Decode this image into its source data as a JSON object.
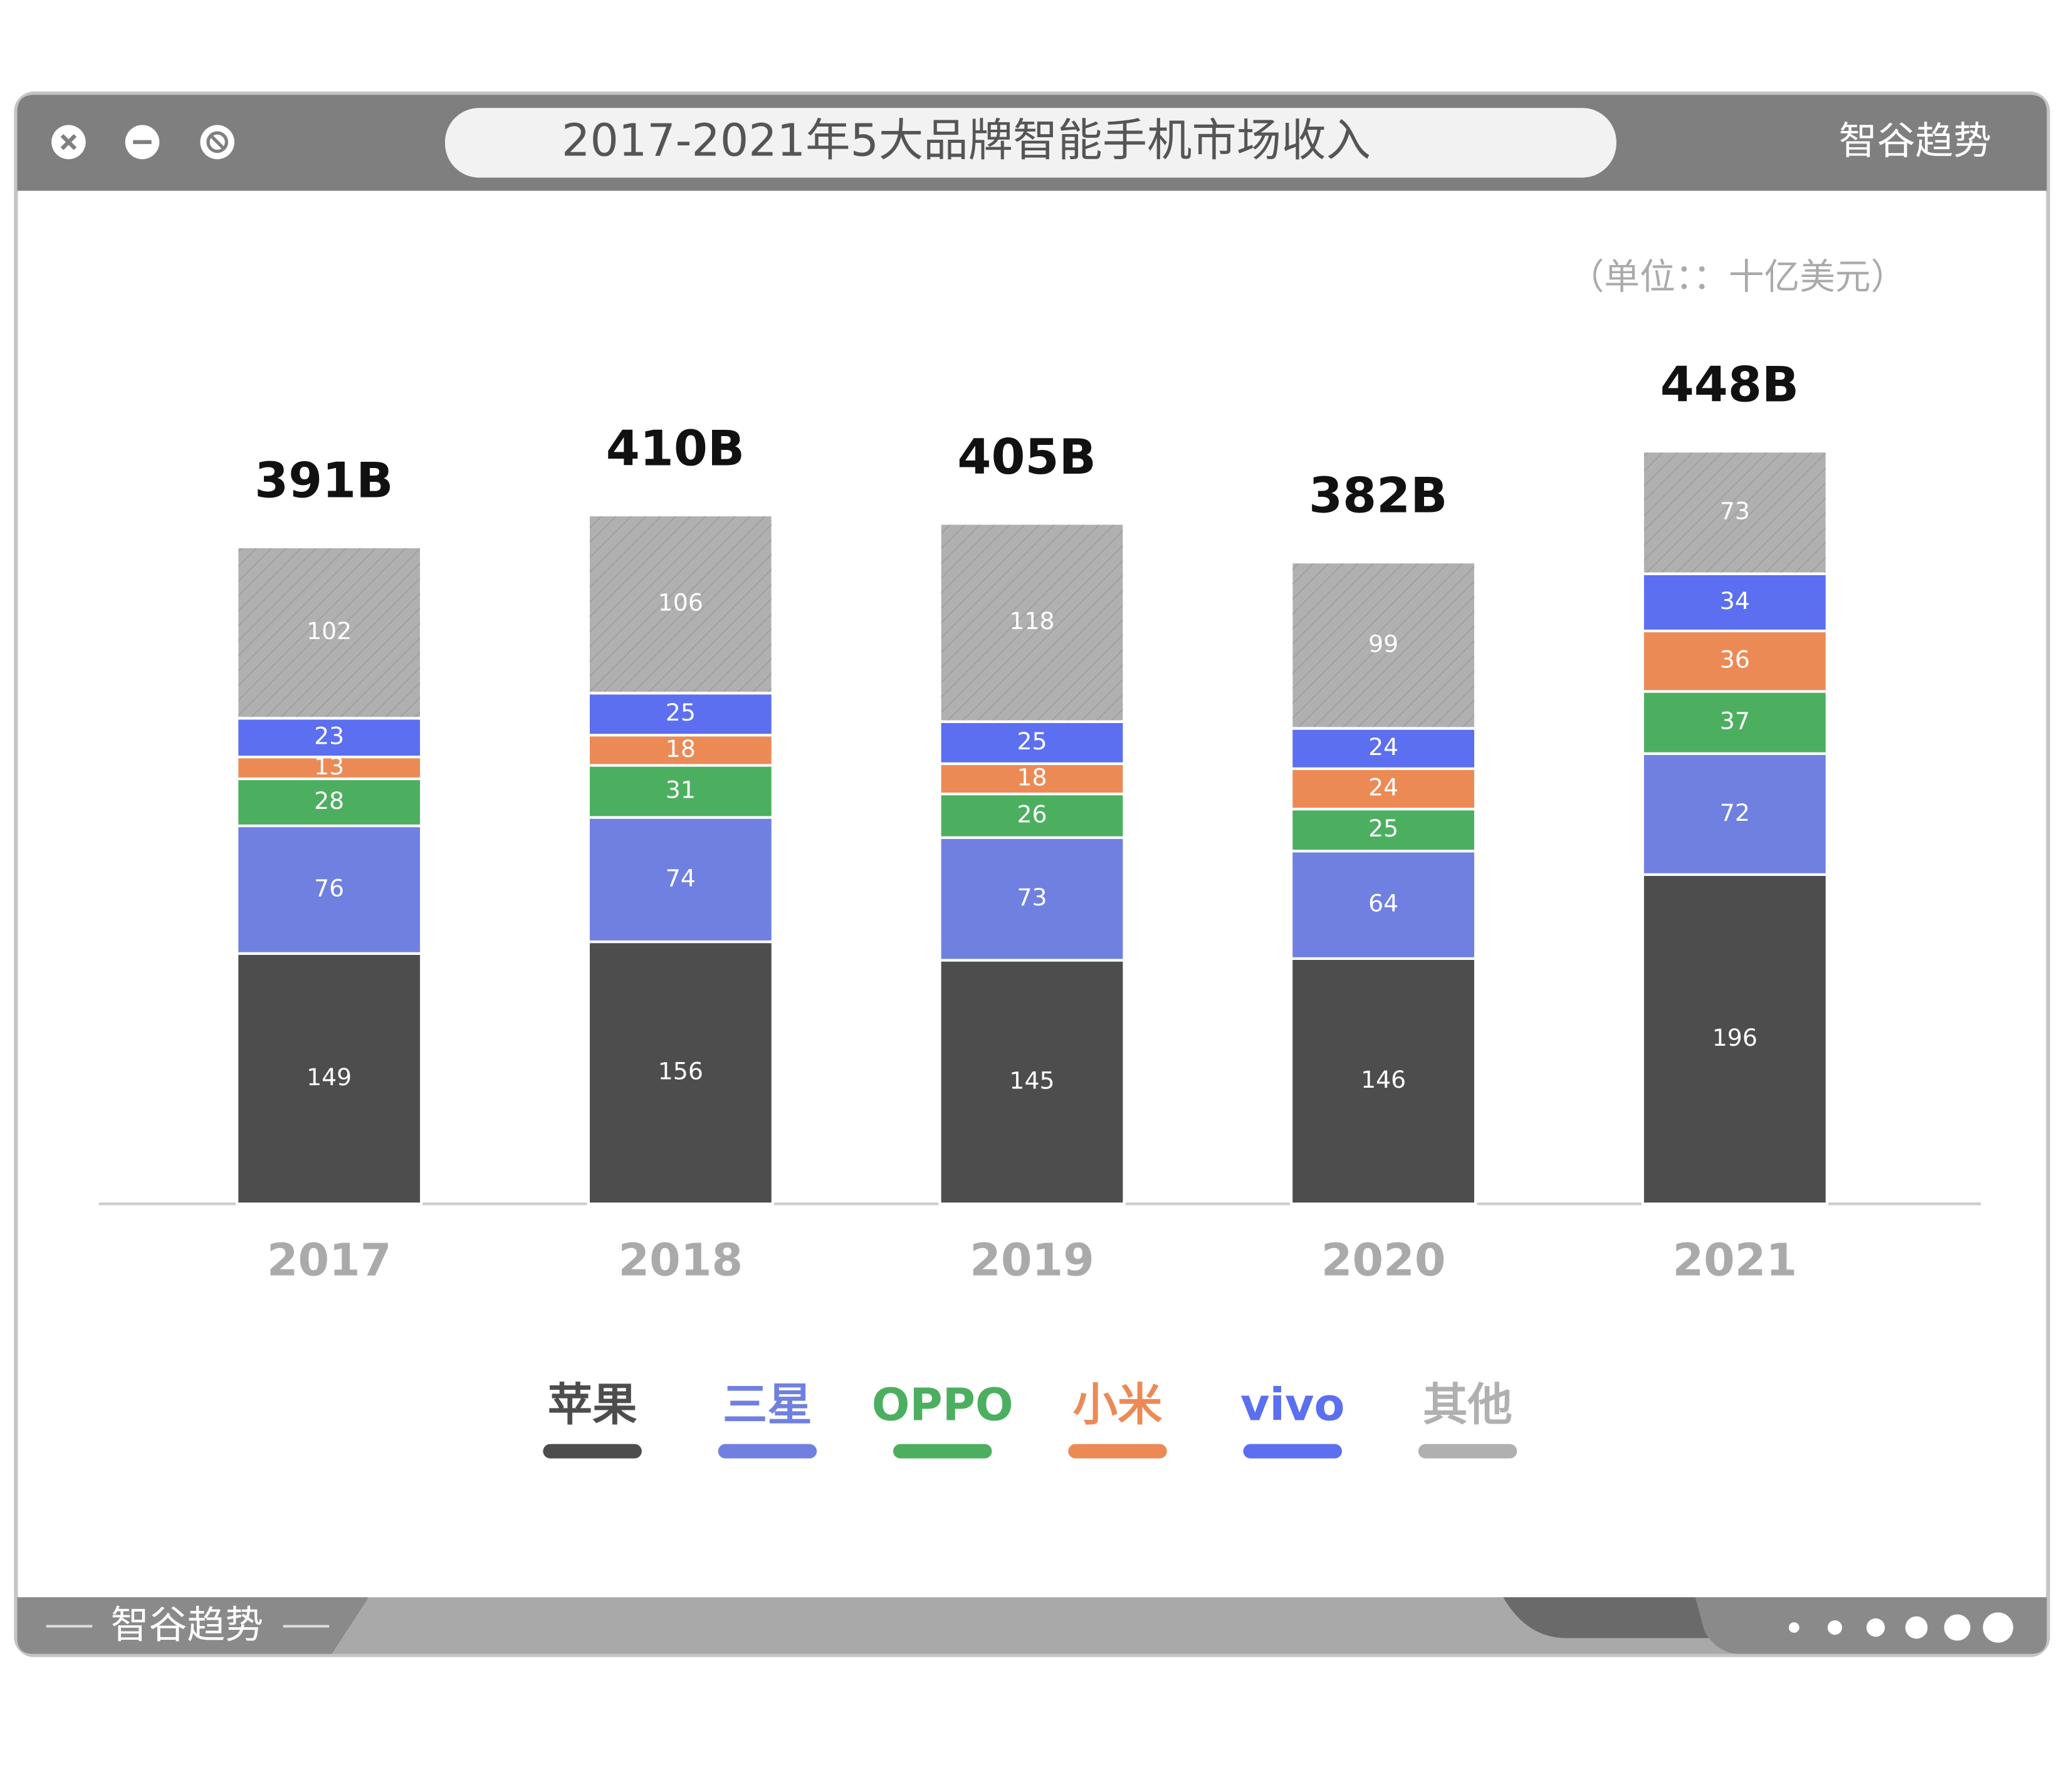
{
  "chart_data": {
    "type": "bar",
    "stacked": true,
    "title": "2017-2021年5大品牌智能手机市场收入",
    "brand": "智谷趋势",
    "unit_note": "（单位：：十亿美元）",
    "categories": [
      "2017",
      "2018",
      "2019",
      "2020",
      "2021"
    ],
    "series": [
      {
        "name": "苹果",
        "color": "#4d4d4d",
        "values": [
          149,
          156,
          145,
          146,
          196
        ]
      },
      {
        "name": "三星",
        "color": "#7080e0",
        "values": [
          76,
          74,
          73,
          64,
          72
        ]
      },
      {
        "name": "OPPO",
        "color": "#4caf60",
        "values": [
          28,
          31,
          26,
          25,
          37
        ]
      },
      {
        "name": "小米",
        "color": "#ec8a55",
        "values": [
          13,
          18,
          18,
          24,
          36
        ]
      },
      {
        "name": "vivo",
        "color": "#5b6ff0",
        "values": [
          23,
          25,
          25,
          24,
          34
        ]
      },
      {
        "name": "其他",
        "color": "#b0b0b0",
        "hatch": true,
        "values": [
          102,
          106,
          118,
          99,
          73
        ]
      }
    ],
    "totals": {
      "values": [
        391,
        410,
        405,
        382,
        448
      ],
      "value_labels": [
        "391B",
        "410B",
        "405B",
        "382B",
        "448B"
      ]
    }
  }
}
